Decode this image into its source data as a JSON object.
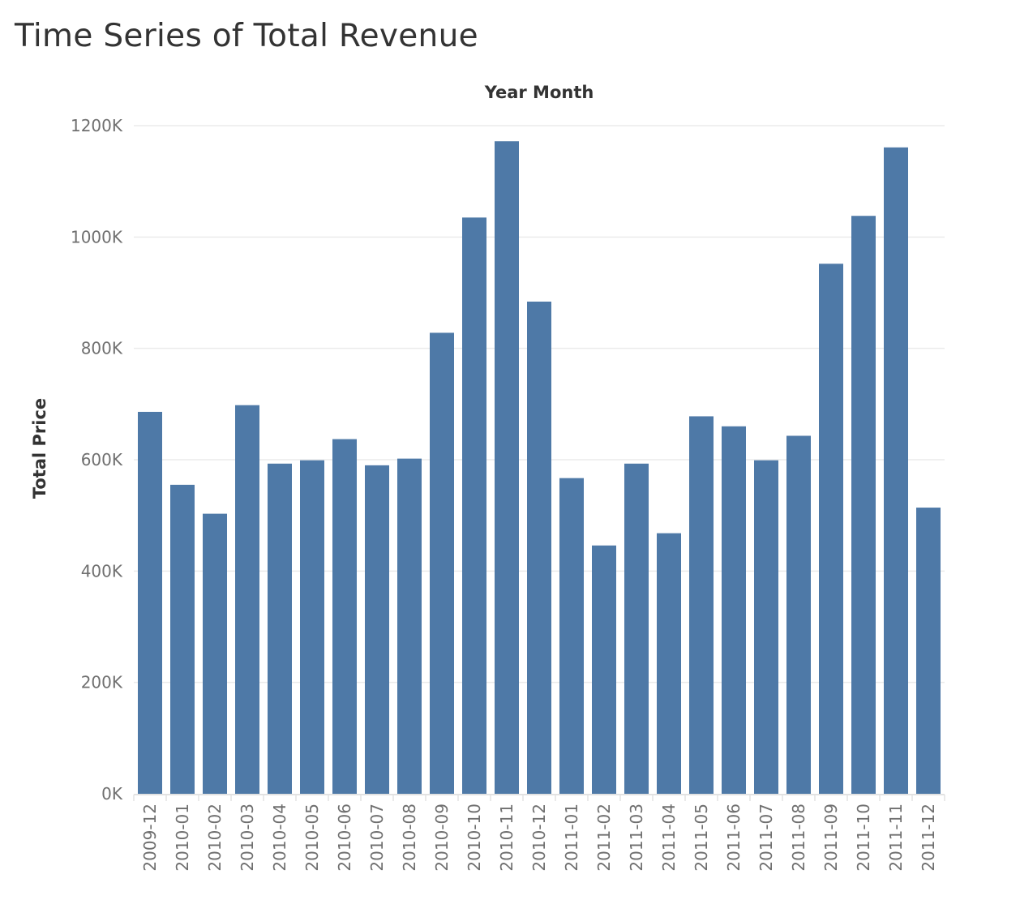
{
  "title": "Time Series of Total Revenue",
  "colors": {
    "bar": "#4e79a7",
    "grid": "#ebebeb",
    "axis_line": "#e2e2e2",
    "text": "#333333",
    "tick_text": "#6f6f6f"
  },
  "chart_data": {
    "type": "bar",
    "title": "Time Series of Total Revenue",
    "xlabel": "Year Month",
    "ylabel": "Total Price",
    "x_label_position": "top",
    "categories": [
      "2009-12",
      "2010-01",
      "2010-02",
      "2010-03",
      "2010-04",
      "2010-05",
      "2010-06",
      "2010-07",
      "2010-08",
      "2010-09",
      "2010-10",
      "2010-11",
      "2010-12",
      "2011-01",
      "2011-02",
      "2011-03",
      "2011-04",
      "2011-05",
      "2011-06",
      "2011-07",
      "2011-08",
      "2011-09",
      "2011-10",
      "2011-11",
      "2011-12"
    ],
    "values": [
      686000,
      555000,
      503000,
      698000,
      593000,
      599000,
      637000,
      590000,
      602000,
      828000,
      1035000,
      1172000,
      884000,
      567000,
      446000,
      593000,
      468000,
      678000,
      660000,
      599000,
      643000,
      952000,
      1038000,
      1161000,
      514000
    ],
    "ylim": [
      0,
      1200000
    ],
    "yticks": [
      0,
      200000,
      400000,
      600000,
      800000,
      1000000,
      1200000
    ],
    "ytick_labels": [
      "0K",
      "200K",
      "400K",
      "600K",
      "800K",
      "1000K",
      "1200K"
    ],
    "grid": true,
    "legend": "none"
  }
}
